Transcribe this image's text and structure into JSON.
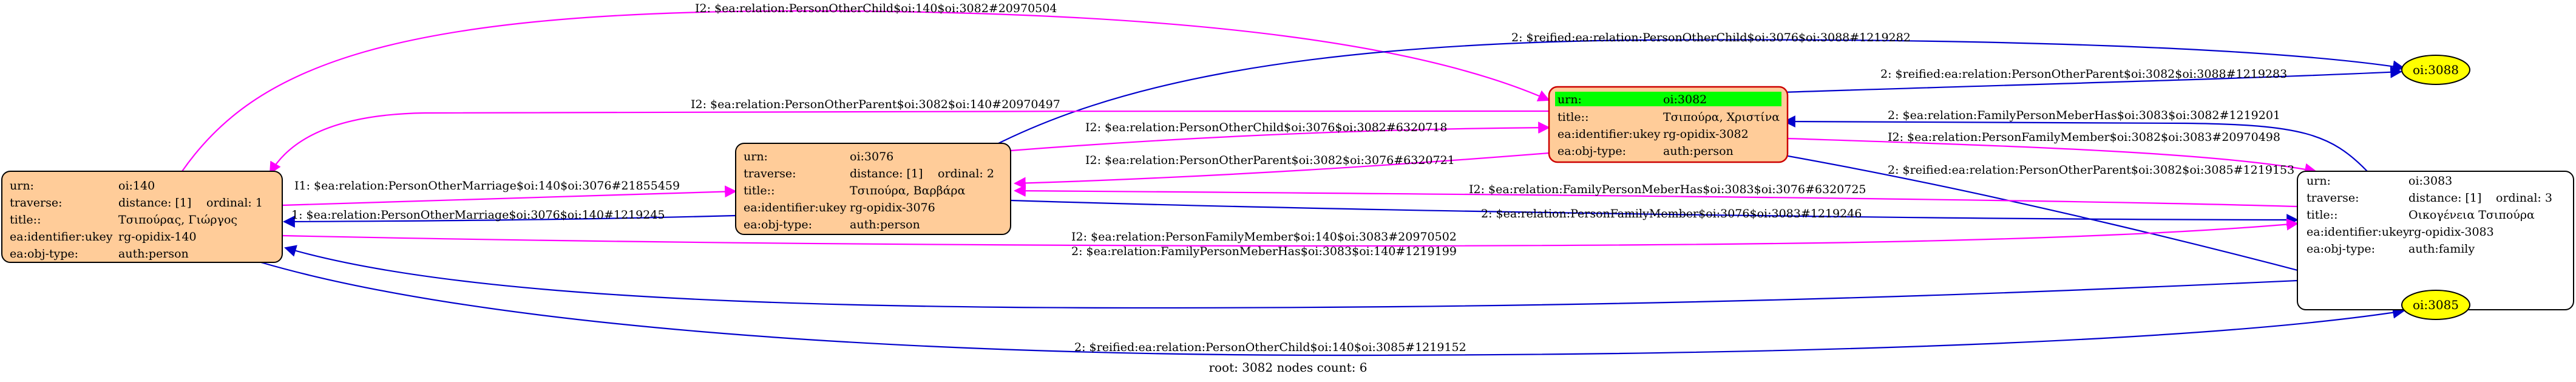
{
  "footer": "root: 3082 nodes count: 6",
  "colors": {
    "magenta": "#ff00ff",
    "blue": "#0000cc",
    "node_fill": "#ffcc99",
    "root_highlight": "#00ff00",
    "oval_fill": "#ffff00",
    "family_fill": "#ffffff"
  },
  "nodes": {
    "n140": {
      "rows": [
        [
          "urn:",
          "oi:140",
          ""
        ],
        [
          "traverse:",
          "distance: [1]",
          "ordinal: 1"
        ],
        [
          "title::",
          "Τσιπούρας, Γιώργος",
          ""
        ],
        [
          "ea:identifier:ukey",
          "rg-opidix-140",
          ""
        ],
        [
          "ea:obj-type:",
          "auth:person",
          ""
        ]
      ]
    },
    "n3076": {
      "rows": [
        [
          "urn:",
          "oi:3076",
          ""
        ],
        [
          "traverse:",
          "distance: [1]",
          "ordinal: 2"
        ],
        [
          "title::",
          "Τσιπούρα, Βαρβάρα",
          ""
        ],
        [
          "ea:identifier:ukey",
          "rg-opidix-3076",
          ""
        ],
        [
          "ea:obj-type:",
          "auth:person",
          ""
        ]
      ]
    },
    "n3082": {
      "rows": [
        [
          "urn:",
          "oi:3082",
          ""
        ],
        [
          "title::",
          "Τσιπούρα, Χριστίνα",
          ""
        ],
        [
          "ea:identifier:ukey",
          "rg-opidix-3082",
          ""
        ],
        [
          "ea:obj-type:",
          "auth:person",
          ""
        ]
      ]
    },
    "n3083": {
      "rows": [
        [
          "urn:",
          "oi:3083",
          ""
        ],
        [
          "traverse:",
          "distance: [1]",
          "ordinal: 3"
        ],
        [
          "title::",
          "Οικογένεια Τσιπούρα",
          ""
        ],
        [
          "ea:identifier:ukey",
          "rg-opidix-3083",
          ""
        ],
        [
          "ea:obj-type:",
          "auth:family",
          ""
        ]
      ]
    },
    "oval3088": {
      "label": "oi:3088"
    },
    "oval3085": {
      "label": "oi:3085"
    }
  },
  "edges": [
    {
      "id": "e1",
      "label": "I2: $ea:relation:PersonOtherChild$oi:140$oi:3082#20970504",
      "color": "magenta"
    },
    {
      "id": "e2",
      "label": "2: $reified:ea:relation:PersonOtherChild$oi:3076$oi:3088#1219282",
      "color": "blue"
    },
    {
      "id": "e3",
      "label": "2: $reified:ea:relation:PersonOtherParent$oi:3082$oi:3088#1219283",
      "color": "blue"
    },
    {
      "id": "e4",
      "label": "I2: $ea:relation:PersonOtherParent$oi:3082$oi:140#20970497",
      "color": "magenta"
    },
    {
      "id": "e5",
      "label": "I2: $ea:relation:PersonOtherChild$oi:3076$oi:3082#6320718",
      "color": "magenta"
    },
    {
      "id": "e6",
      "label": "2: $ea:relation:FamilyPersonMeberHas$oi:3083$oi:3082#1219201",
      "color": "blue"
    },
    {
      "id": "e7",
      "label": "I2: $ea:relation:PersonFamilyMember$oi:3082$oi:3083#20970498",
      "color": "magenta"
    },
    {
      "id": "e8",
      "label": "I2: $ea:relation:PersonOtherParent$oi:3082$oi:3076#6320721",
      "color": "magenta"
    },
    {
      "id": "e9",
      "label": "2: $reified:ea:relation:PersonOtherParent$oi:3082$oi:3085#1219153",
      "color": "blue"
    },
    {
      "id": "e10",
      "label": "I1: $ea:relation:PersonOtherMarriage$oi:140$oi:3076#21855459",
      "color": "magenta"
    },
    {
      "id": "e11",
      "label": "I2: $ea:relation:FamilyPersonMeberHas$oi:3083$oi:3076#6320725",
      "color": "magenta"
    },
    {
      "id": "e12",
      "label": "1: $ea:relation:PersonOtherMarriage$oi:3076$oi:140#1219245",
      "color": "blue"
    },
    {
      "id": "e13",
      "label": "2: $ea:relation:PersonFamilyMember$oi:3076$oi:3083#1219246",
      "color": "blue"
    },
    {
      "id": "e14",
      "label": "I2: $ea:relation:PersonFamilyMember$oi:140$oi:3083#20970502",
      "color": "magenta"
    },
    {
      "id": "e15",
      "label": "2: $ea:relation:FamilyPersonMeberHas$oi:3083$oi:140#1219199",
      "color": "blue"
    },
    {
      "id": "e16",
      "label": "2: $reified:ea:relation:PersonOtherChild$oi:140$oi:3085#1219152",
      "color": "blue"
    }
  ]
}
